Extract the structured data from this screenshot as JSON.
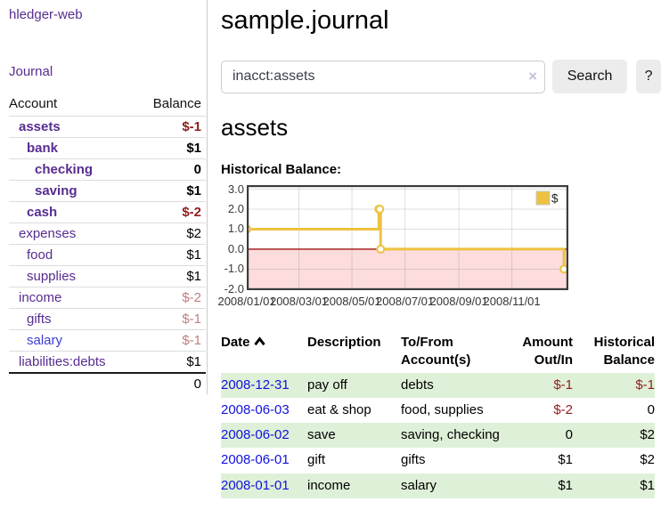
{
  "app": {
    "brand": "hledger-web",
    "nav": {
      "journal": "Journal"
    }
  },
  "sidebar": {
    "accounts_table": {
      "headers": {
        "account": "Account",
        "balance": "Balance"
      },
      "rows": [
        {
          "label": "assets",
          "balance": "$-1",
          "depth": 1,
          "current": true,
          "negative": true,
          "blue": false
        },
        {
          "label": "bank",
          "balance": "$1",
          "depth": 2,
          "current": true,
          "negative": false,
          "blue": false
        },
        {
          "label": "checking",
          "balance": "0",
          "depth": 3,
          "current": true,
          "negative": false,
          "blue": false
        },
        {
          "label": "saving",
          "balance": "$1",
          "depth": 3,
          "current": true,
          "negative": false,
          "blue": false
        },
        {
          "label": "cash",
          "balance": "$-2",
          "depth": 2,
          "current": true,
          "negative": true,
          "blue": false
        },
        {
          "label": "expenses",
          "balance": "$2",
          "depth": 1,
          "current": false,
          "negative": false,
          "blue": false
        },
        {
          "label": "food",
          "balance": "$1",
          "depth": 2,
          "current": false,
          "negative": false,
          "blue": false
        },
        {
          "label": "supplies",
          "balance": "$1",
          "depth": 2,
          "current": false,
          "negative": false,
          "blue": false
        },
        {
          "label": "income",
          "balance": "$-2",
          "depth": 1,
          "current": false,
          "negative": true,
          "blue": false
        },
        {
          "label": "gifts",
          "balance": "$-1",
          "depth": 2,
          "current": false,
          "negative": true,
          "blue": false
        },
        {
          "label": "salary",
          "balance": "$-1",
          "depth": 2,
          "current": false,
          "negative": true,
          "blue": true
        },
        {
          "label": "liabilities:debts",
          "balance": "$1",
          "depth": 1,
          "current": false,
          "negative": false,
          "blue": false
        }
      ],
      "total": "0"
    }
  },
  "header": {
    "title": "sample.journal"
  },
  "search": {
    "value": "inacct:assets",
    "clear_icon": "×",
    "search_button": "Search",
    "help_button": "?"
  },
  "account_page": {
    "heading": "assets",
    "chart_label": "Historical Balance:"
  },
  "chart_data": {
    "type": "line",
    "title": "Historical Balance:",
    "legend": [
      {
        "label": "$",
        "color": "#edc240"
      }
    ],
    "legend_position": "top-right",
    "grid": true,
    "steps": true,
    "series": [
      {
        "name": "$",
        "color": "#edc240",
        "points": [
          {
            "x": "2008-01-01",
            "y": 1
          },
          {
            "x": "2008-06-01",
            "y": 2
          },
          {
            "x": "2008-06-02",
            "y": 2
          },
          {
            "x": "2008-06-03",
            "y": 0
          },
          {
            "x": "2008-12-31",
            "y": -1
          }
        ]
      }
    ],
    "x_ticks": [
      {
        "x": "2008-01-01",
        "label": "2008/01/01"
      },
      {
        "x": "2008-03-01",
        "label": "2008/03/01"
      },
      {
        "x": "2008-05-01",
        "label": "2008/05/01"
      },
      {
        "x": "2008-07-01",
        "label": "2008/07/01"
      },
      {
        "x": "2008-09-01",
        "label": "2008/09/01"
      },
      {
        "x": "2008-11-01",
        "label": "2008/11/01"
      }
    ],
    "y_ticks": [
      {
        "v": 3,
        "label": "3.0"
      },
      {
        "v": 2,
        "label": "2.0"
      },
      {
        "v": 1,
        "label": "1.0"
      },
      {
        "v": 0,
        "label": "0.0"
      },
      {
        "v": -1,
        "label": "-1.0"
      },
      {
        "v": -2,
        "label": "-2.0"
      }
    ],
    "xlim": [
      "2008-01-01",
      "2009-01-05"
    ],
    "ylim": [
      -2.05,
      3.2
    ],
    "negative_region": {
      "from_y": 0,
      "color": "#fcdcdc",
      "line_color": "#a21212"
    }
  },
  "register": {
    "headers": {
      "date": "Date",
      "description": "Description",
      "accounts": "To/From Account(s)",
      "amount": "Amount Out/In",
      "balance": "Historical Balance"
    },
    "sort_icon": "chevron-up",
    "rows": [
      {
        "date": "2008-12-31",
        "description": "pay off",
        "accounts": "debts",
        "amount": "$-1",
        "balance": "$-1"
      },
      {
        "date": "2008-06-03",
        "description": "eat & shop",
        "accounts": "food, supplies",
        "amount": "$-2",
        "balance": "0"
      },
      {
        "date": "2008-06-02",
        "description": "save",
        "accounts": "saving, checking",
        "amount": "0",
        "balance": "$2"
      },
      {
        "date": "2008-06-01",
        "description": "gift",
        "accounts": "gifts",
        "amount": "$1",
        "balance": "$2"
      },
      {
        "date": "2008-01-01",
        "description": "income",
        "accounts": "salary",
        "amount": "$1",
        "balance": "$1"
      }
    ]
  },
  "colors": {
    "link_purple": "#572c90",
    "link_blue": "#1111dd",
    "negative_strong": "#8f1d1d",
    "negative_soft": "#c07f7f",
    "chart_line": "#edc240",
    "chart_negative_fill": "#fcdcdc",
    "zebra_green": "#dff0d8"
  }
}
